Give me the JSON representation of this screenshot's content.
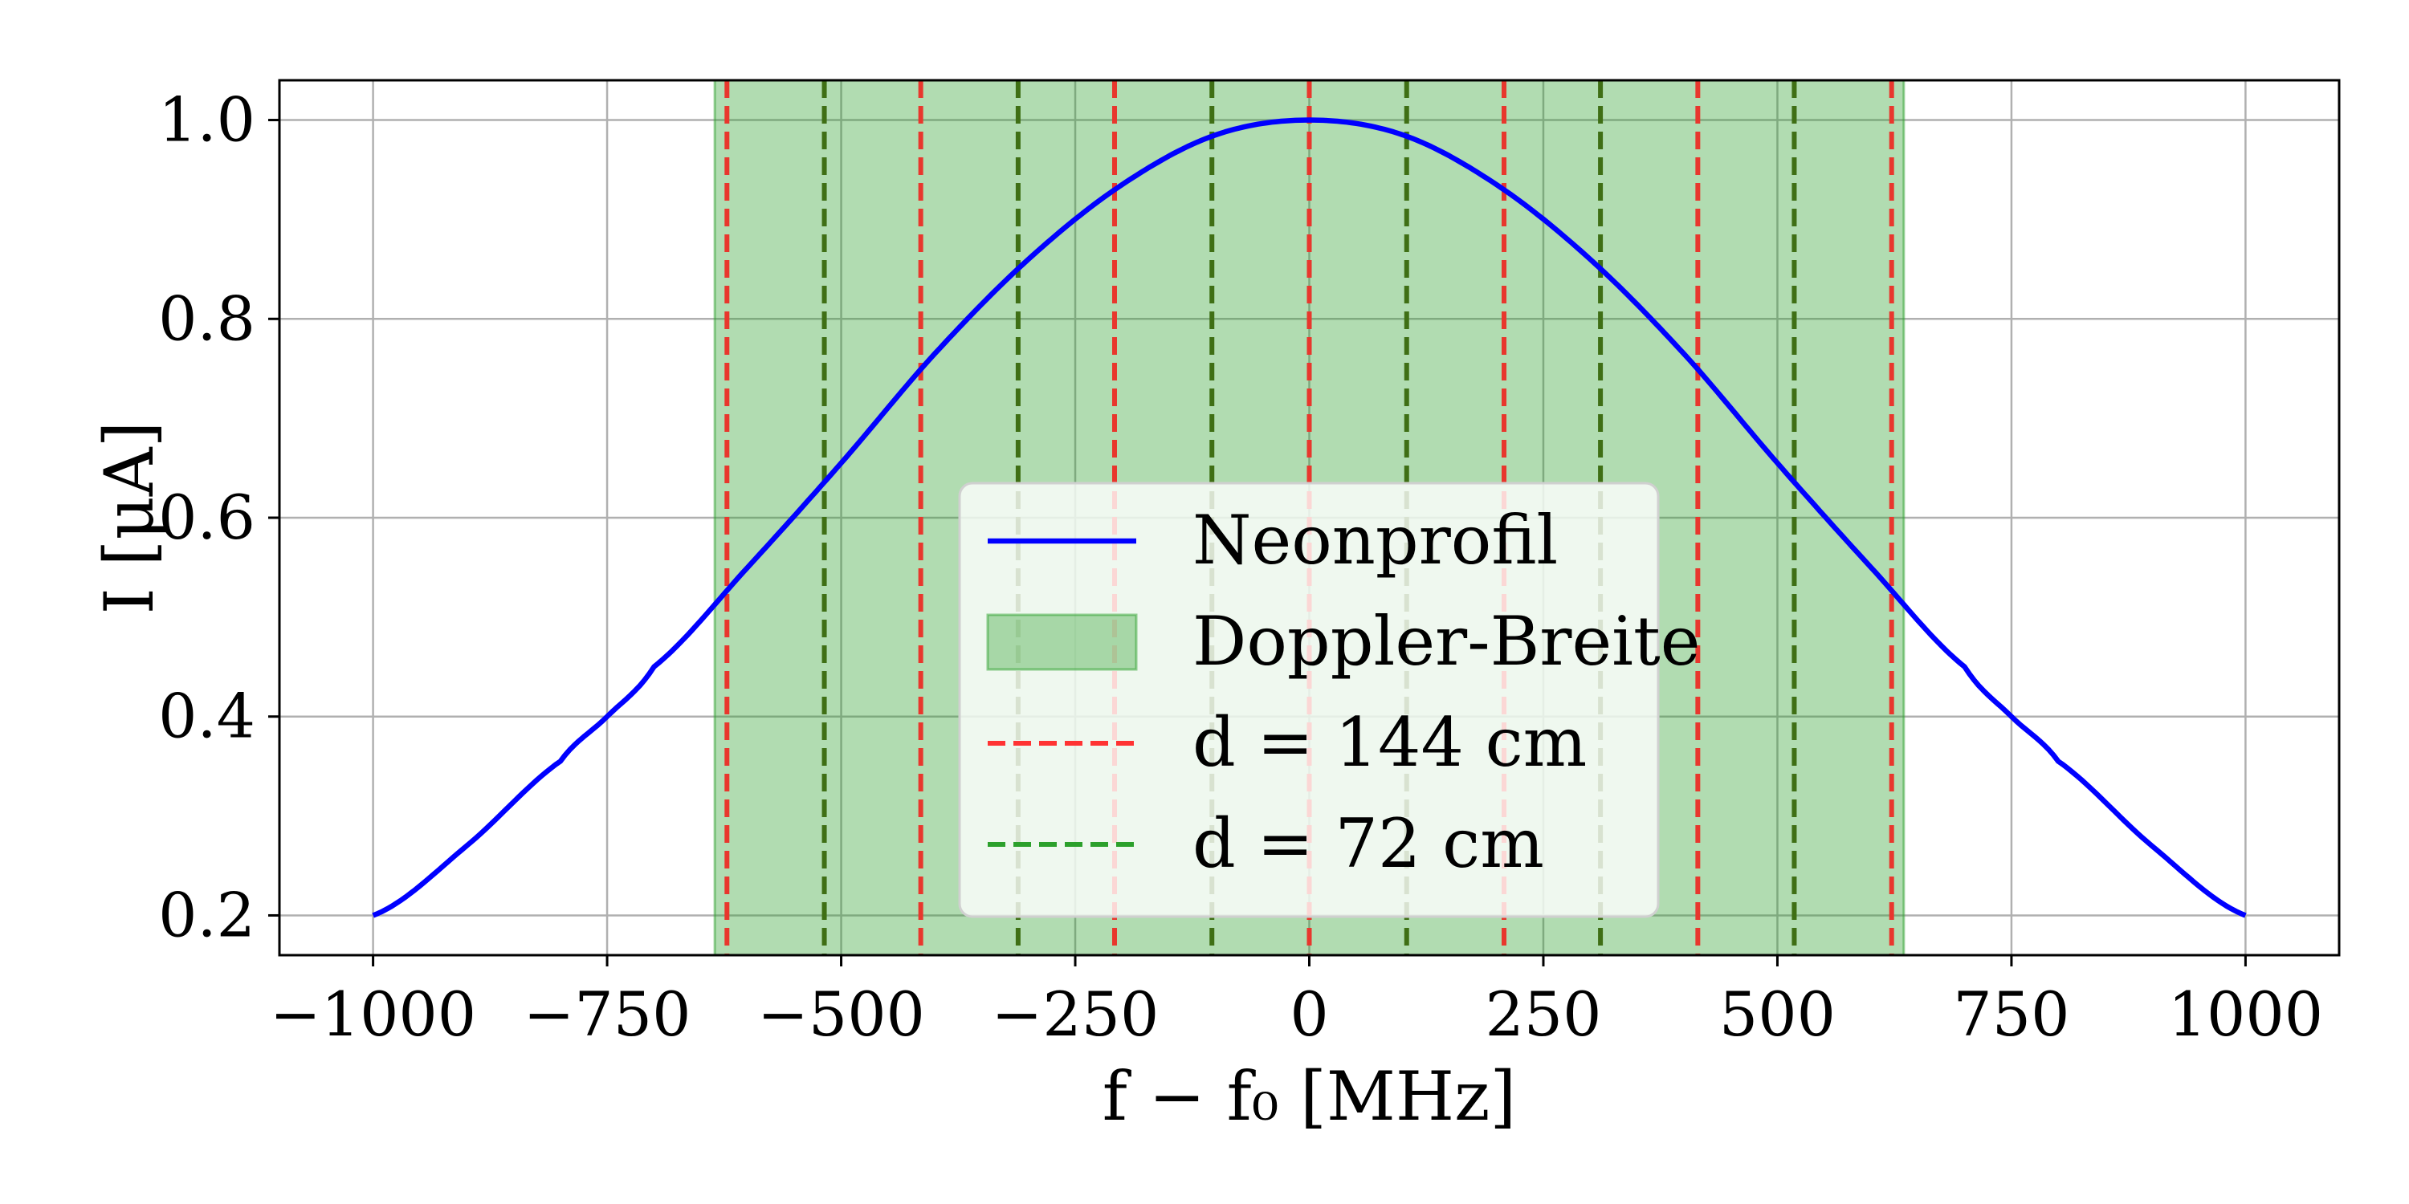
{
  "chart_data": {
    "type": "line",
    "xlabel": "f − f₀ [MHz]",
    "ylabel": "I [μA]",
    "xlim": [
      -1100,
      1100
    ],
    "ylim": [
      0.16,
      1.04
    ],
    "xticks": [
      -1000,
      -750,
      -500,
      -250,
      0,
      250,
      500,
      750,
      1000
    ],
    "xtick_labels": [
      "−1000",
      "−750",
      "−500",
      "−250",
      "0",
      "250",
      "500",
      "750",
      "1000"
    ],
    "yticks": [
      0.2,
      0.4,
      0.6,
      0.8,
      1.0
    ],
    "ytick_labels": [
      "0.2",
      "0.4",
      "0.6",
      "0.8",
      "1.0"
    ],
    "grid": true,
    "legend_position": "lower-center",
    "series": [
      {
        "name": "Neonprofil",
        "kind": "line",
        "color": "#0000ff",
        "x": [
          -1000,
          -900,
          -800,
          -750,
          -700,
          -600,
          -500,
          -400,
          -300,
          -200,
          -100,
          0,
          100,
          200,
          300,
          400,
          500,
          600,
          700,
          750,
          800,
          900,
          1000
        ],
        "y": [
          0.2,
          0.27,
          0.355,
          0.4,
          0.45,
          0.55,
          0.655,
          0.765,
          0.86,
          0.935,
          0.985,
          1.0,
          0.985,
          0.935,
          0.86,
          0.765,
          0.655,
          0.55,
          0.45,
          0.4,
          0.355,
          0.27,
          0.2
        ]
      },
      {
        "name": "Doppler-Breite",
        "kind": "span",
        "color": "#2ca02c",
        "x_range": [
          -635,
          635
        ]
      },
      {
        "name": "d = 144 cm",
        "kind": "vlines",
        "color": "#ff3333",
        "x": [
          -622,
          -415,
          -208,
          0,
          208,
          415,
          622
        ]
      },
      {
        "name": "d = 72 cm",
        "kind": "vlines",
        "color": "#2ca02c",
        "x": [
          -518,
          -311,
          -104,
          104,
          311,
          518
        ]
      }
    ]
  }
}
